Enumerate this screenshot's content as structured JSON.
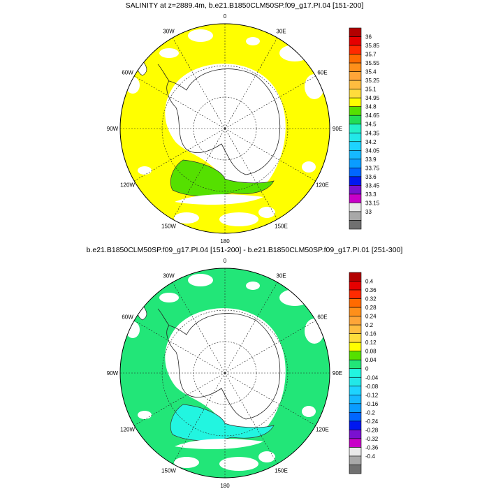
{
  "panels": [
    {
      "title": "SALINITY at z=2889.4m, b.e21.B1850CLM50SP.f09_g17.PI.04 [151-200]",
      "lon_labels": [
        "0",
        "30E",
        "60E",
        "90E",
        "120E",
        "150E",
        "180",
        "150W",
        "120W",
        "90W",
        "60W",
        "30W"
      ],
      "background_fill": "#ffff00",
      "patch_fill": "#55e000",
      "colorbar": {
        "colors": [
          "#b30000",
          "#e60000",
          "#ff2a00",
          "#ff6a00",
          "#ff8f1a",
          "#ffa538",
          "#ffbd40",
          "#ffdc3c",
          "#ffff00",
          "#55e000",
          "#22dd55",
          "#22f0c8",
          "#22e8e8",
          "#1ed3ff",
          "#16b8ff",
          "#0a9cff",
          "#0066ff",
          "#0018f0",
          "#7a10d0",
          "#c800c8",
          "#e9e9e9",
          "#a8a8a8",
          "#707070"
        ],
        "labels": [
          "36",
          "35.85",
          "35.7",
          "35.55",
          "35.4",
          "35.25",
          "35.1",
          "34.95",
          "34.8",
          "34.65",
          "34.5",
          "34.35",
          "34.2",
          "34.05",
          "33.9",
          "33.75",
          "33.6",
          "33.45",
          "33.3",
          "33.15",
          "33"
        ]
      }
    },
    {
      "title": "b.e21.B1850CLM50SP.f09_g17.PI.04 [151-200] - b.e21.B1850CLM50SP.f09_g17.PI.01 [251-300]",
      "lon_labels": [
        "0",
        "30E",
        "60E",
        "90E",
        "120E",
        "150E",
        "180",
        "150W",
        "120W",
        "90W",
        "60W",
        "30W"
      ],
      "background_fill": "#22e678",
      "patch_fill": "#22f5e0",
      "colorbar": {
        "colors": [
          "#b30000",
          "#e60000",
          "#ff2a00",
          "#ff6a00",
          "#ff8f1a",
          "#ffa538",
          "#ffbd40",
          "#ffdc3c",
          "#ffff00",
          "#55e000",
          "#22e678",
          "#22f5e0",
          "#22e8e8",
          "#1ed3ff",
          "#16b8ff",
          "#0a9cff",
          "#0066ff",
          "#0018f0",
          "#7a10d0",
          "#c800c8",
          "#e9e9e9",
          "#a8a8a8",
          "#707070"
        ],
        "labels": [
          "0.4",
          "0.36",
          "0.32",
          "0.28",
          "0.24",
          "0.2",
          "0.16",
          "0.12",
          "0.08",
          "0.04",
          "0",
          "-0.04",
          "-0.08",
          "-0.12",
          "-0.16",
          "-0.2",
          "-0.24",
          "-0.28",
          "-0.32",
          "-0.36",
          "-0.4"
        ]
      }
    }
  ]
}
